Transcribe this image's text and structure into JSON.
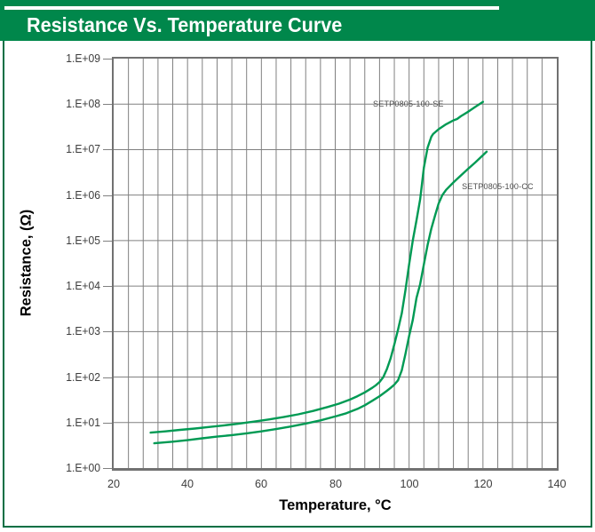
{
  "header": {
    "title": "Resistance Vs. Temperature Curve"
  },
  "chart_data": {
    "type": "line",
    "title": "Resistance Vs. Temperature Curve",
    "xlabel": "Temperature, °C",
    "ylabel": "Resistance, (Ω)",
    "xlim": [
      20,
      140
    ],
    "x_major_ticks": [
      20,
      40,
      60,
      80,
      100,
      120,
      140
    ],
    "x_minor_step": 4,
    "y_scale": "log10",
    "ylim": [
      1,
      1000000000
    ],
    "y_tick_labels": [
      "1.E+00",
      "1.E+01",
      "1.E+02",
      "1.E+03",
      "1.E+04",
      "1.E+05",
      "1.E+06",
      "1.E+07",
      "1.E+08",
      "1.E+09"
    ],
    "grid": "vertical every 4 C, horizontal every decade",
    "legend_position": "inline curve labels",
    "series": [
      {
        "name": "SETP0805-100-SE",
        "label_anchor": {
          "t": 99.8,
          "r": 100000000
        },
        "points": [
          [
            30,
            6
          ],
          [
            34,
            6.4
          ],
          [
            38,
            6.9
          ],
          [
            42,
            7.4
          ],
          [
            46,
            8.0
          ],
          [
            50,
            8.7
          ],
          [
            54,
            9.5
          ],
          [
            58,
            10.5
          ],
          [
            62,
            11.7
          ],
          [
            66,
            13.2
          ],
          [
            70,
            15.2
          ],
          [
            74,
            18
          ],
          [
            78,
            22
          ],
          [
            81,
            26
          ],
          [
            84,
            32
          ],
          [
            86,
            38
          ],
          [
            88,
            46
          ],
          [
            90,
            58
          ],
          [
            91,
            66
          ],
          [
            92,
            78
          ],
          [
            93,
            100
          ],
          [
            94,
            150
          ],
          [
            95,
            260
          ],
          [
            96,
            520
          ],
          [
            97,
            1100
          ],
          [
            98,
            2500
          ],
          [
            99,
            8000
          ],
          [
            100,
            30000
          ],
          [
            101,
            100000
          ],
          [
            102,
            280000
          ],
          [
            103,
            800000
          ],
          [
            104,
            4000000
          ],
          [
            105,
            11000000
          ],
          [
            106,
            19000000
          ],
          [
            106.5,
            22000000
          ],
          [
            108,
            28000000
          ],
          [
            110,
            36000000
          ],
          [
            112,
            44000000
          ],
          [
            113,
            47000000
          ],
          [
            114,
            54000000
          ],
          [
            116,
            68000000
          ],
          [
            118,
            88000000
          ],
          [
            120,
            112000000
          ]
        ]
      },
      {
        "name": "SETP0805-100-CC",
        "label_anchor": {
          "t": 124,
          "r": 1550000
        },
        "points": [
          [
            31,
            3.5
          ],
          [
            36,
            3.8
          ],
          [
            40,
            4.1
          ],
          [
            44,
            4.5
          ],
          [
            48,
            4.9
          ],
          [
            52,
            5.3
          ],
          [
            56,
            5.8
          ],
          [
            60,
            6.4
          ],
          [
            64,
            7.2
          ],
          [
            68,
            8.2
          ],
          [
            72,
            9.5
          ],
          [
            76,
            11.2
          ],
          [
            80,
            13.6
          ],
          [
            83,
            16
          ],
          [
            86,
            20
          ],
          [
            88,
            24
          ],
          [
            90,
            30
          ],
          [
            92,
            38
          ],
          [
            94,
            50
          ],
          [
            95,
            58
          ],
          [
            96,
            68
          ],
          [
            97,
            85
          ],
          [
            98,
            140
          ],
          [
            99,
            320
          ],
          [
            100,
            800
          ],
          [
            101,
            1800
          ],
          [
            102,
            5500
          ],
          [
            103,
            11000
          ],
          [
            104,
            30000
          ],
          [
            105,
            80000
          ],
          [
            106,
            180000
          ],
          [
            107,
            350000
          ],
          [
            108,
            650000
          ],
          [
            109,
            1000000
          ],
          [
            110,
            1300000
          ],
          [
            112,
            1900000
          ],
          [
            114,
            2700000
          ],
          [
            116,
            3800000
          ],
          [
            118,
            5300000
          ],
          [
            120,
            7500000
          ],
          [
            121,
            9000000
          ]
        ]
      }
    ],
    "colors": {
      "banner_green": "#00874B",
      "frame_green": "#006F44",
      "curve_green": "#009A54",
      "grid_gray": "#808080",
      "axis_border_gray": "#717171",
      "tick_text": "#3d3d3d",
      "series_label_text": "#4d4d4d"
    }
  }
}
